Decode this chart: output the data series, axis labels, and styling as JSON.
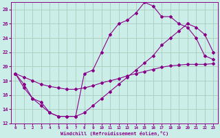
{
  "bg_color": "#cceee8",
  "grid_color": "#aaccbb",
  "line_color": "#880088",
  "xlim_min": -0.5,
  "xlim_max": 23.5,
  "ylim_min": 12,
  "ylim_max": 29,
  "xticks": [
    0,
    1,
    2,
    3,
    4,
    5,
    6,
    7,
    8,
    9,
    10,
    11,
    12,
    13,
    14,
    15,
    16,
    17,
    18,
    19,
    20,
    21,
    22,
    23
  ],
  "yticks": [
    12,
    14,
    16,
    18,
    20,
    22,
    24,
    26,
    28
  ],
  "xlabel": "Windchill (Refroidissement éolien,°C)",
  "series": [
    {
      "x": [
        0,
        1,
        2,
        3,
        4,
        5,
        6,
        7,
        8,
        9,
        10,
        11,
        12,
        13,
        14,
        15,
        16,
        17,
        18,
        19,
        20,
        21,
        22,
        23
      ],
      "y": [
        19,
        17.5,
        15.5,
        14.5,
        13.5,
        13.0,
        13.0,
        13.0,
        19.0,
        19.5,
        22.0,
        24.5,
        26.0,
        26.5,
        27.5,
        29.0,
        28.5,
        27.0,
        27.0,
        26.0,
        25.5,
        24.0,
        21.5,
        21.0
      ]
    },
    {
      "x": [
        0,
        1,
        2,
        3,
        4,
        5,
        6,
        7,
        8,
        9,
        10,
        11,
        12,
        13,
        14,
        15,
        16,
        17,
        18,
        19,
        20,
        21,
        22,
        23
      ],
      "y": [
        19.0,
        18.5,
        18.0,
        17.5,
        17.2,
        17.0,
        16.8,
        16.8,
        17.0,
        17.3,
        17.7,
        18.0,
        18.3,
        18.7,
        19.0,
        19.3,
        19.6,
        19.9,
        20.1,
        20.2,
        20.3,
        20.3,
        20.3,
        20.4
      ]
    },
    {
      "x": [
        0,
        1,
        2,
        3,
        4,
        5,
        6,
        7,
        8,
        9,
        10,
        11,
        12,
        13,
        14,
        15,
        16,
        17,
        18,
        19,
        20,
        21,
        22,
        23
      ],
      "y": [
        19.0,
        17.0,
        15.5,
        15.0,
        13.5,
        13.0,
        13.0,
        13.0,
        13.5,
        14.5,
        15.5,
        16.5,
        17.5,
        18.5,
        19.5,
        20.5,
        21.5,
        23.0,
        24.0,
        25.0,
        26.0,
        25.5,
        24.5,
        22.0
      ]
    }
  ]
}
